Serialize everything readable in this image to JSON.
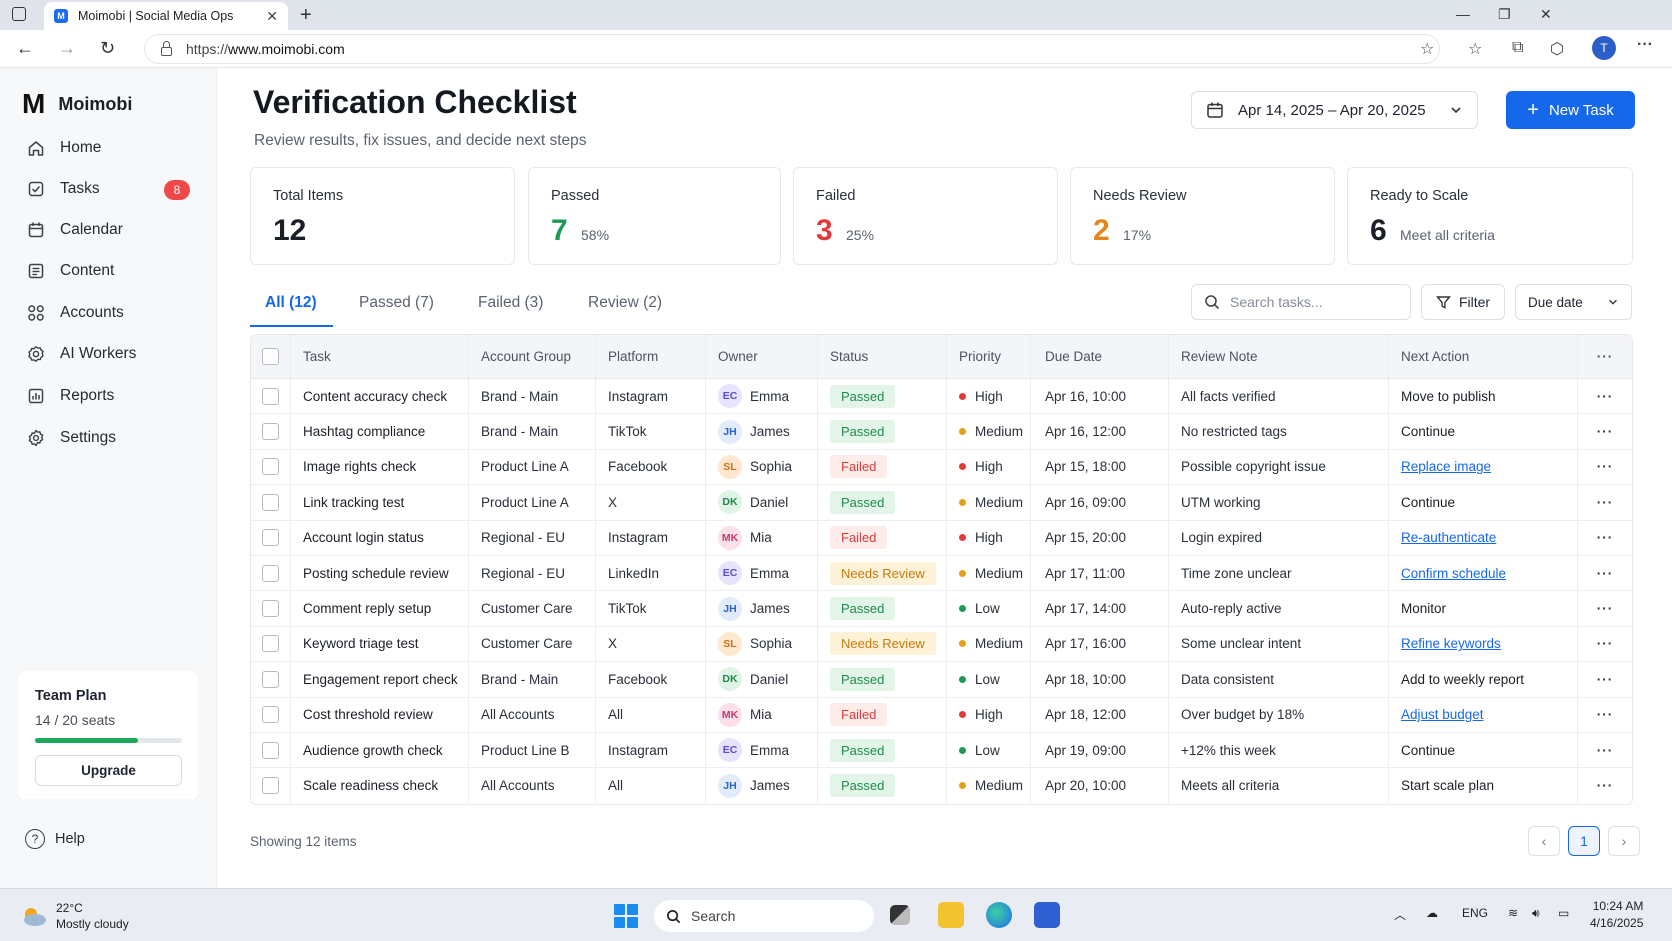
{
  "browser": {
    "tab_title": "Moimobi | Social Media Ops",
    "favicon_letter": "M",
    "url_prefix": "https://",
    "url_host": "www.moimobi.com",
    "profile_initial": "T"
  },
  "sidebar": {
    "brand": "Moimobi",
    "brand_mark": "M",
    "items": [
      {
        "label": "Home",
        "icon": "home-icon"
      },
      {
        "label": "Tasks",
        "icon": "tasks-icon",
        "badge": "8"
      },
      {
        "label": "Calendar",
        "icon": "calendar-icon"
      },
      {
        "label": "Content",
        "icon": "content-icon"
      },
      {
        "label": "Accounts",
        "icon": "accounts-icon"
      },
      {
        "label": "AI Workers",
        "icon": "gear-icon"
      },
      {
        "label": "Reports",
        "icon": "reports-icon"
      },
      {
        "label": "Settings",
        "icon": "settings-icon"
      }
    ],
    "plan": {
      "title": "Team Plan",
      "seats": "14 / 20 seats",
      "usage_fraction": 0.7,
      "upgrade_label": "Upgrade"
    },
    "help_label": "Help"
  },
  "header": {
    "title": "Verification Checklist",
    "subtitle": "Review results, fix issues, and decide next steps",
    "date_range": "Apr 14, 2025 – Apr 20, 2025",
    "new_task_label": "New Task"
  },
  "stats": [
    {
      "label": "Total Items",
      "value": "12",
      "sub": "",
      "color": "#1b1f27"
    },
    {
      "label": "Passed",
      "value": "7",
      "sub": "58%",
      "color": "#1f9a55"
    },
    {
      "label": "Failed",
      "value": "3",
      "sub": "25%",
      "color": "#e03a3a"
    },
    {
      "label": "Needs Review",
      "value": "2",
      "sub": "17%",
      "color": "#e3871a"
    },
    {
      "label": "Ready to Scale",
      "value": "6",
      "sub": "Meet all criteria",
      "color": "#1b1f27"
    }
  ],
  "tabs": [
    {
      "label": "All (12)",
      "active": true
    },
    {
      "label": "Passed (7)"
    },
    {
      "label": "Failed (3)"
    },
    {
      "label": "Review (2)"
    }
  ],
  "search_placeholder": "Search tasks...",
  "filter_label": "Filter",
  "sort_label": "Due date",
  "columns": [
    "Task",
    "Account Group",
    "Platform",
    "Owner",
    "Status",
    "Priority",
    "Due Date",
    "Review Note",
    "Next Action"
  ],
  "rows": [
    {
      "task": "Content accuracy check",
      "group": "Brand - Main",
      "platform": "Instagram",
      "initials": "EC",
      "owner": "Emma",
      "status": "Passed",
      "priority": "High",
      "due": "Apr 16, 10:00",
      "note": "All facts verified",
      "action": "Move to publish",
      "action_link": false
    },
    {
      "task": "Hashtag compliance",
      "group": "Brand - Main",
      "platform": "TikTok",
      "initials": "JH",
      "owner": "James",
      "status": "Passed",
      "priority": "Medium",
      "due": "Apr 16, 12:00",
      "note": "No restricted tags",
      "action": "Continue",
      "action_link": false
    },
    {
      "task": "Image rights check",
      "group": "Product Line A",
      "platform": "Facebook",
      "initials": "SL",
      "owner": "Sophia",
      "status": "Failed",
      "priority": "High",
      "due": "Apr 15, 18:00",
      "note": "Possible copyright issue",
      "action": "Replace image",
      "action_link": true
    },
    {
      "task": "Link tracking test",
      "group": "Product Line A",
      "platform": "X",
      "initials": "DK",
      "owner": "Daniel",
      "status": "Passed",
      "priority": "Medium",
      "due": "Apr 16, 09:00",
      "note": "UTM working",
      "action": "Continue",
      "action_link": false
    },
    {
      "task": "Account login status",
      "group": "Regional - EU",
      "platform": "Instagram",
      "initials": "MK",
      "owner": "Mia",
      "status": "Failed",
      "priority": "High",
      "due": "Apr 15, 20:00",
      "note": "Login expired",
      "action": "Re-authenticate",
      "action_link": true
    },
    {
      "task": "Posting schedule review",
      "group": "Regional - EU",
      "platform": "LinkedIn",
      "initials": "EC",
      "owner": "Emma",
      "status": "Needs Review",
      "priority": "Medium",
      "due": "Apr 17, 11:00",
      "note": "Time zone unclear",
      "action": "Confirm schedule",
      "action_link": true
    },
    {
      "task": "Comment reply setup",
      "group": "Customer Care",
      "platform": "TikTok",
      "initials": "JH",
      "owner": "James",
      "status": "Passed",
      "priority": "Low",
      "due": "Apr 17, 14:00",
      "note": "Auto-reply active",
      "action": "Monitor",
      "action_link": false
    },
    {
      "task": "Keyword triage test",
      "group": "Customer Care",
      "platform": "X",
      "initials": "SL",
      "owner": "Sophia",
      "status": "Needs Review",
      "priority": "Medium",
      "due": "Apr 17, 16:00",
      "note": "Some unclear intent",
      "action": "Refine keywords",
      "action_link": true
    },
    {
      "task": "Engagement report check",
      "group": "Brand - Main",
      "platform": "Facebook",
      "initials": "DK",
      "owner": "Daniel",
      "status": "Passed",
      "priority": "Low",
      "due": "Apr 18, 10:00",
      "note": "Data consistent",
      "action": "Add to weekly report",
      "action_link": false
    },
    {
      "task": "Cost threshold review",
      "group": "All Accounts",
      "platform": "All",
      "initials": "MK",
      "owner": "Mia",
      "status": "Failed",
      "priority": "High",
      "due": "Apr 18, 12:00",
      "note": "Over budget by 18%",
      "action": "Adjust budget",
      "action_link": true
    },
    {
      "task": "Audience growth check",
      "group": "Product Line B",
      "platform": "Instagram",
      "initials": "EC",
      "owner": "Emma",
      "status": "Passed",
      "priority": "Low",
      "due": "Apr 19, 09:00",
      "note": "+12% this week",
      "action": "Continue",
      "action_link": false
    },
    {
      "task": "Scale readiness check",
      "group": "All Accounts",
      "platform": "All",
      "initials": "JH",
      "owner": "James",
      "status": "Passed",
      "priority": "Medium",
      "due": "Apr 20, 10:00",
      "note": "Meets all criteria",
      "action": "Start scale plan",
      "action_link": false
    }
  ],
  "owner_colors": {
    "EC": {
      "bg": "#e6e3fb",
      "fg": "#5b4bd1"
    },
    "JH": {
      "bg": "#e1ecfb",
      "fg": "#2c64c4"
    },
    "SL": {
      "bg": "#fde7cf",
      "fg": "#c8731a"
    },
    "DK": {
      "bg": "#dff3e6",
      "fg": "#1f8c4b"
    },
    "MK": {
      "bg": "#fbdfe9",
      "fg": "#c33a6f"
    }
  },
  "priority_colors": {
    "High": "#e03a3a",
    "Medium": "#e3a11a",
    "Low": "#1f9a55"
  },
  "footer": {
    "showing": "Showing 12 items",
    "page": "1"
  },
  "taskbar": {
    "temp": "22°C",
    "weather": "Mostly cloudy",
    "search_label": "Search",
    "lang": "ENG",
    "time": "10:24 AM",
    "date": "4/16/2025"
  }
}
